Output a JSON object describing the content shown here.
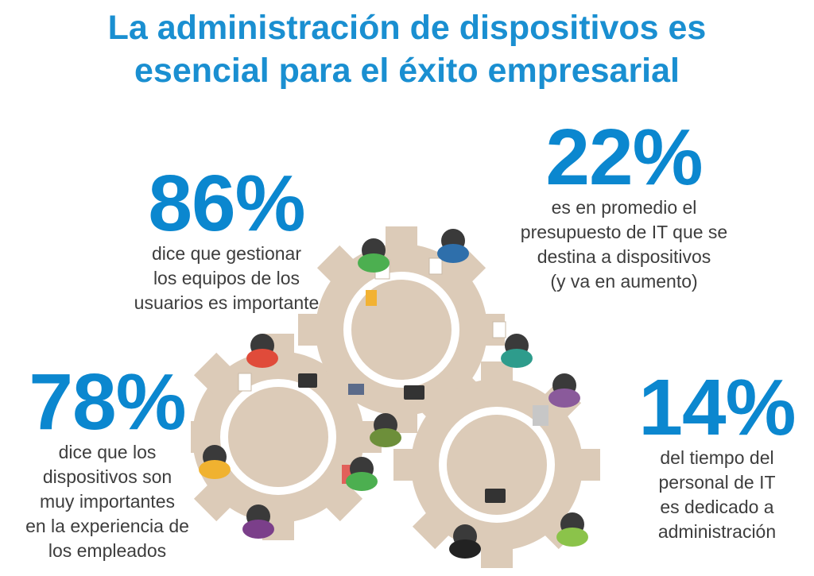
{
  "title": {
    "line1": "La administración de dispositivos es",
    "line2": "esencial para el éxito empresarial"
  },
  "stats": [
    {
      "value": "86%",
      "lines": [
        "dice que gestionar",
        "los equipos de los",
        "usuarios es importante"
      ]
    },
    {
      "value": "22%",
      "lines": [
        "es en promedio el",
        "presupuesto de IT que se",
        "destina a dispositivos",
        "(y va en aumento)"
      ]
    },
    {
      "value": "78%",
      "lines": [
        "dice que los",
        "dispositivos son",
        "muy importantes",
        "en la experiencia de",
        "los empleados"
      ]
    },
    {
      "value": "14%",
      "lines": [
        "del tiempo del",
        "personal de IT",
        "es dedicado a",
        "administración"
      ]
    }
  ],
  "colors": {
    "title": "#1a8fd1",
    "stat_number": "#0b87cf",
    "gear": "#dccbb8",
    "gear_ring": "#ffffff"
  },
  "illustration": {
    "icon": "gear-table-meeting-illustration"
  }
}
